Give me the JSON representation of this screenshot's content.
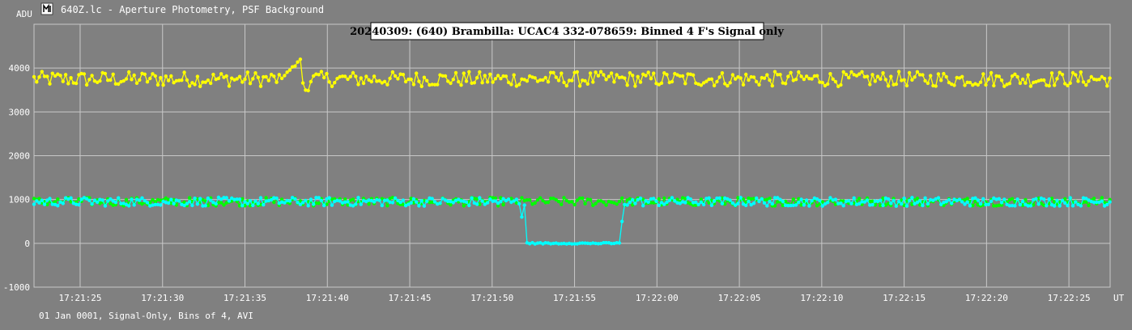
{
  "window": {
    "title": "640Z.lc - Aperture Photometry, PSF Background",
    "icon": "lightcurve-app-icon"
  },
  "footer": {
    "text": "01 Jan 0001, Signal-Only, Bins of 4, AVI"
  },
  "colors": {
    "background": "#808080",
    "grid": "#c8c8c8",
    "target": "#ffff00",
    "comp1": "#00ff00",
    "occulted": "#00ffff",
    "title_bg": "#ffffff"
  },
  "chart_data": {
    "type": "line",
    "title": "20240309: (640) Brambilla: UCAC4 332-078659: Binned 4 F's Signal only",
    "ylabel": "ADU",
    "xlabel": "UT",
    "ylim": [
      -1000,
      5000
    ],
    "y_ticks": [
      -1000,
      0,
      1000,
      2000,
      3000,
      4000
    ],
    "x_ticks": [
      "17:21:25",
      "17:21:30",
      "17:21:35",
      "17:21:40",
      "17:21:45",
      "17:21:50",
      "17:21:55",
      "17:22:00",
      "17:22:05",
      "17:22:10",
      "17:22:15",
      "17:22:20",
      "17:22:25"
    ],
    "x_range": [
      "17:21:22.2",
      "17:22:27.5"
    ],
    "grid": true,
    "series": [
      {
        "color": "#ffff00",
        "base": 3750,
        "noise": 170,
        "features": [
          {
            "from": "17:21:37.2",
            "to": "17:21:38.5",
            "ramp_to": 4230
          },
          {
            "from": "17:21:38.6",
            "to": "17:21:39.0",
            "value": 3500
          }
        ]
      },
      {
        "color": "#00ff00",
        "base": 950,
        "noise": 95,
        "features": []
      },
      {
        "color": "#00ffff",
        "base": 950,
        "noise": 100,
        "features": [
          {
            "from": "17:21:52.0",
            "to": "17:21:57.8",
            "value": 0
          },
          {
            "at": "17:21:51.8",
            "value": 600
          },
          {
            "at": "17:21:57.9",
            "value": 500
          }
        ]
      }
    ]
  }
}
